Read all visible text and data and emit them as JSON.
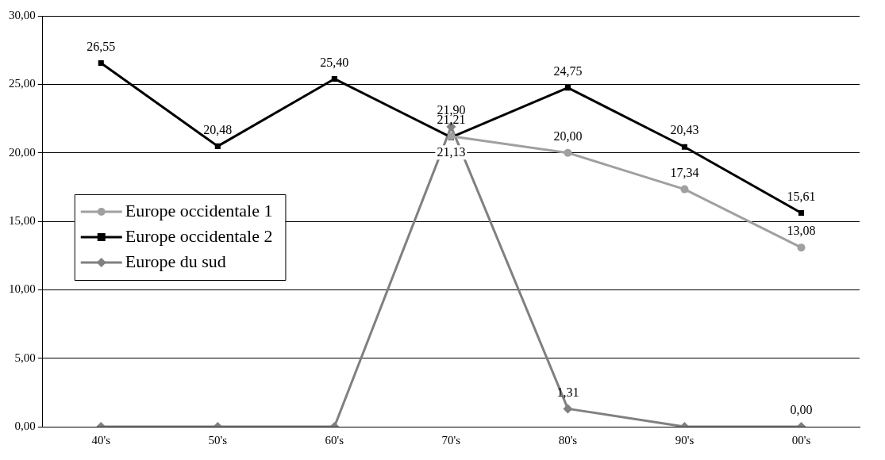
{
  "chart_data": {
    "type": "line",
    "categories": [
      "40's",
      "50's",
      "60's",
      "70's",
      "80's",
      "90's",
      "00's"
    ],
    "series": [
      {
        "name": "Europe occidentale 1",
        "color": "#a0a0a0",
        "marker": "circle",
        "values": [
          null,
          null,
          null,
          21.21,
          20.0,
          17.34,
          13.08
        ],
        "value_labels": [
          null,
          null,
          null,
          "21,21",
          "20,00",
          "17,34",
          "13,08"
        ]
      },
      {
        "name": "Europe occidentale 2",
        "color": "#000000",
        "marker": "square",
        "values": [
          26.55,
          20.48,
          25.4,
          21.13,
          24.75,
          20.43,
          15.61
        ],
        "value_labels": [
          "26,55",
          "20,48",
          "25,40",
          "21,13",
          "24,75",
          "20,43",
          "15,61"
        ]
      },
      {
        "name": "Europe du sud",
        "color": "#808080",
        "marker": "diamond",
        "values": [
          0,
          0,
          0,
          21.9,
          1.31,
          0,
          0
        ],
        "value_labels": [
          null,
          null,
          null,
          "21,90",
          "1,31",
          null,
          "0,00"
        ]
      }
    ],
    "ylim": [
      0,
      30
    ],
    "yticks": [
      {
        "value": 0,
        "label": "0,00"
      },
      {
        "value": 5,
        "label": "5,00"
      },
      {
        "value": 10,
        "label": "10,00"
      },
      {
        "value": 15,
        "label": "15,00"
      },
      {
        "value": 20,
        "label": "20,00"
      },
      {
        "value": 25,
        "label": "25,00"
      },
      {
        "value": 30,
        "label": "30,00"
      }
    ],
    "grid": "y",
    "legend": "left",
    "line_style": "solid"
  }
}
